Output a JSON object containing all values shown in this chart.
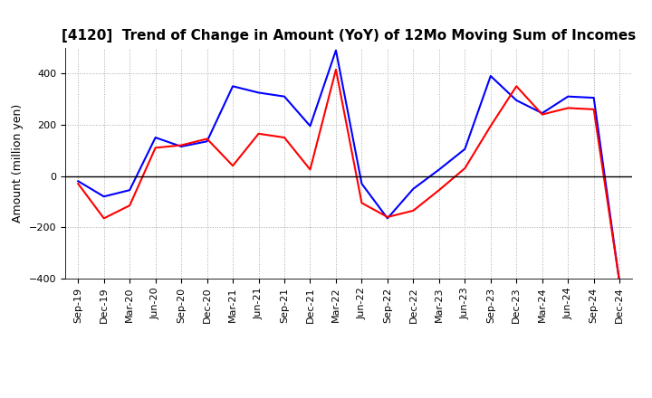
{
  "title": "[4120]  Trend of Change in Amount (YoY) of 12Mo Moving Sum of Incomes",
  "ylabel": "Amount (million yen)",
  "x_labels": [
    "Sep-19",
    "Dec-19",
    "Mar-20",
    "Jun-20",
    "Sep-20",
    "Dec-20",
    "Mar-21",
    "Jun-21",
    "Sep-21",
    "Dec-21",
    "Mar-22",
    "Jun-22",
    "Sep-22",
    "Dec-22",
    "Mar-23",
    "Jun-23",
    "Sep-23",
    "Dec-23",
    "Mar-24",
    "Jun-24",
    "Sep-24",
    "Dec-24"
  ],
  "ordinary_income": [
    -20,
    -80,
    -55,
    150,
    115,
    135,
    350,
    325,
    310,
    195,
    490,
    -30,
    -165,
    -50,
    25,
    105,
    390,
    295,
    245,
    310,
    305,
    -415
  ],
  "net_income": [
    -30,
    -165,
    -115,
    110,
    120,
    145,
    40,
    165,
    150,
    25,
    415,
    -105,
    -160,
    -135,
    -55,
    30,
    195,
    350,
    240,
    265,
    260,
    -415
  ],
  "ordinary_color": "#0000ff",
  "net_color": "#ff0000",
  "ylim": [
    -400,
    500
  ],
  "yticks": [
    -400,
    -200,
    0,
    200,
    400
  ],
  "background_color": "#ffffff",
  "grid_color": "#aaaaaa",
  "title_fontsize": 11,
  "ylabel_fontsize": 9,
  "tick_fontsize": 8,
  "legend_fontsize": 9
}
